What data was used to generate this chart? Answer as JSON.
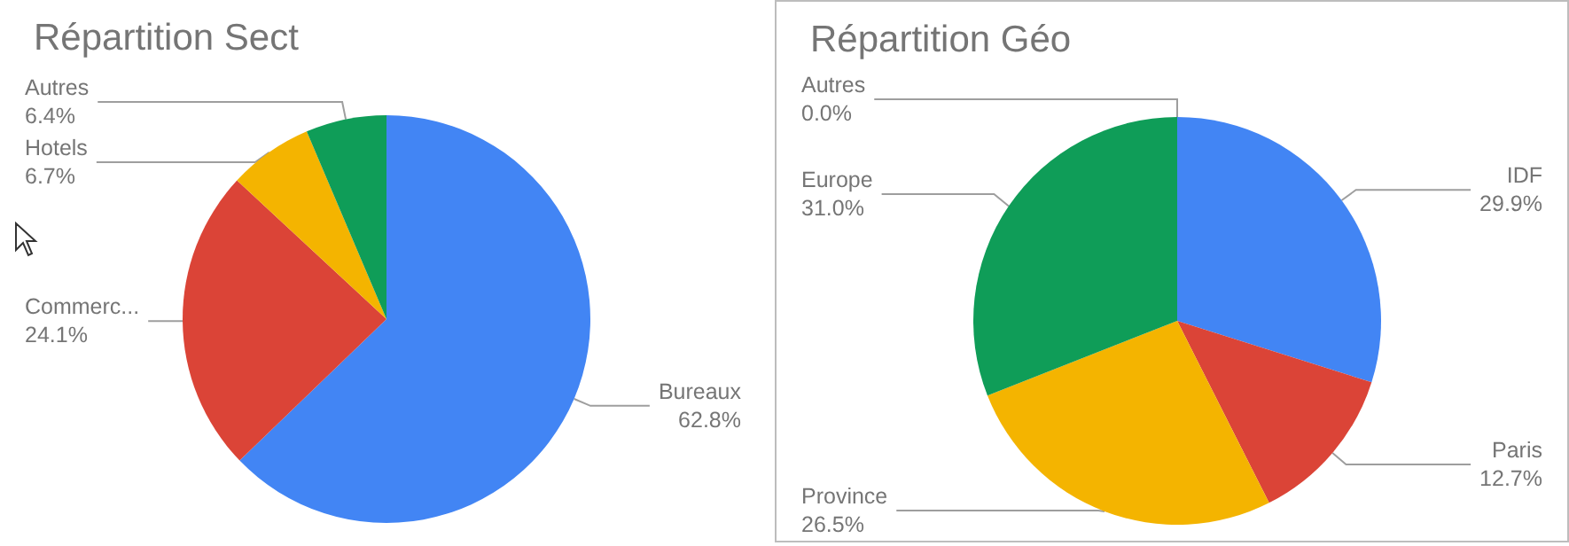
{
  "chart_data": [
    {
      "type": "pie",
      "title": "Répartition Sect",
      "categories": [
        "Bureaux",
        "Commerc...",
        "Hotels",
        "Autres"
      ],
      "values": [
        62.8,
        24.1,
        6.7,
        6.4
      ],
      "colors": [
        "#4285f4",
        "#db4437",
        "#f4b400",
        "#0f9d58"
      ],
      "value_labels": [
        "62.8%",
        "24.1%",
        "6.7%",
        "6.4%"
      ],
      "legend": false
    },
    {
      "type": "pie",
      "title": "Répartition Géo",
      "categories": [
        "IDF",
        "Paris",
        "Province",
        "Europe",
        "Autres"
      ],
      "values": [
        29.9,
        12.7,
        26.5,
        31.0,
        0.0
      ],
      "colors": [
        "#4285f4",
        "#db4437",
        "#f4b400",
        "#0f9d58",
        "#ab47bc"
      ],
      "value_labels": [
        "29.9%",
        "12.7%",
        "26.5%",
        "31.0%",
        "0.0%"
      ],
      "legend": false
    }
  ]
}
